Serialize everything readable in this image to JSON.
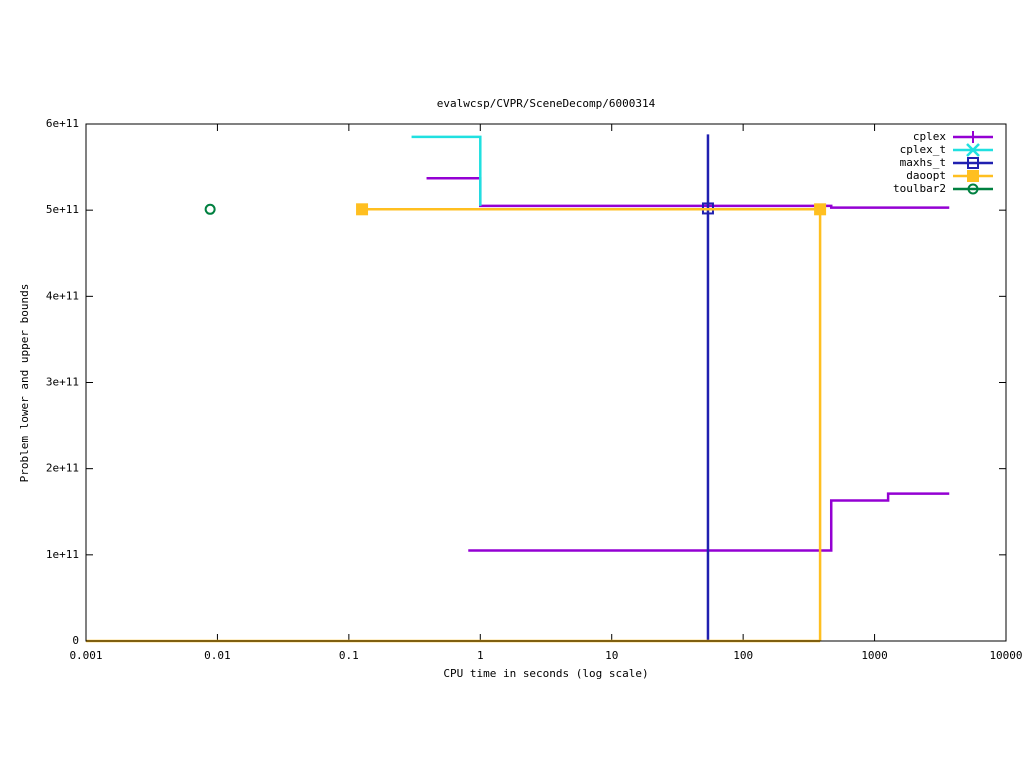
{
  "chart_data": {
    "type": "line",
    "title": "evalwcsp/CVPR/SceneDecomp/6000314",
    "x_label": "CPU time in seconds (log scale)",
    "y_label": "Problem lower and upper bounds",
    "x_scale": "log",
    "xlim": [
      0.001,
      10000
    ],
    "xticks": [
      0.001,
      0.01,
      0.1,
      1,
      10,
      100,
      1000,
      10000
    ],
    "ylim": [
      0,
      600000000000
    ],
    "yticks": [
      0,
      {
        "value": 100000000000,
        "label": "1e+11"
      },
      {
        "value": 200000000000,
        "label": "2e+11"
      },
      {
        "value": 300000000000,
        "label": "3e+11"
      },
      {
        "value": 400000000000,
        "label": "4e+11"
      },
      {
        "value": 500000000000,
        "label": "5e+11"
      },
      {
        "value": 600000000000,
        "label": "6e+11"
      }
    ],
    "grid": false,
    "legend": "top-right",
    "series": [
      {
        "name": "cplex",
        "color": "#9400d3",
        "marker": "plus",
        "x": [
          0.39,
          1,
          1,
          468,
          468,
          3700,
          null,
          0.81,
          468,
          468,
          1268,
          1268,
          3700
        ],
        "values": [
          537000000000,
          537000000000,
          505000000000,
          505000000000,
          503000000000,
          503000000000,
          null,
          105000000000,
          105000000000,
          163000000000,
          163000000000,
          171000000000,
          171000000000
        ]
      },
      {
        "name": "cplex_t",
        "color": "#20e0e0",
        "marker": "cross",
        "x": [
          0.3,
          1,
          1
        ],
        "values": [
          585000000000,
          585000000000,
          505000000000
        ]
      },
      {
        "name": "maxhs_t",
        "color": "#2020b0",
        "marker": "square-open",
        "x": [
          54,
          54
        ],
        "values": [
          0,
          588000000000
        ],
        "markers_x": [
          54
        ],
        "markers": [
          502000000000
        ]
      },
      {
        "name": "daoopt",
        "color": "#ffbf20",
        "marker": "square",
        "x": [
          0.126,
          385,
          385,
          null,
          0.001,
          385
        ],
        "values": [
          501000000000,
          501000000000,
          0,
          null,
          0,
          0
        ],
        "markers_x": [
          0.126,
          385
        ],
        "markers": [
          501000000000,
          501000000000
        ]
      },
      {
        "name": "toulbar2",
        "color": "#008040",
        "marker": "circle-open",
        "x": [],
        "values": [],
        "markers_x": [
          0.0088
        ],
        "markers": [
          501000000000
        ]
      }
    ]
  }
}
